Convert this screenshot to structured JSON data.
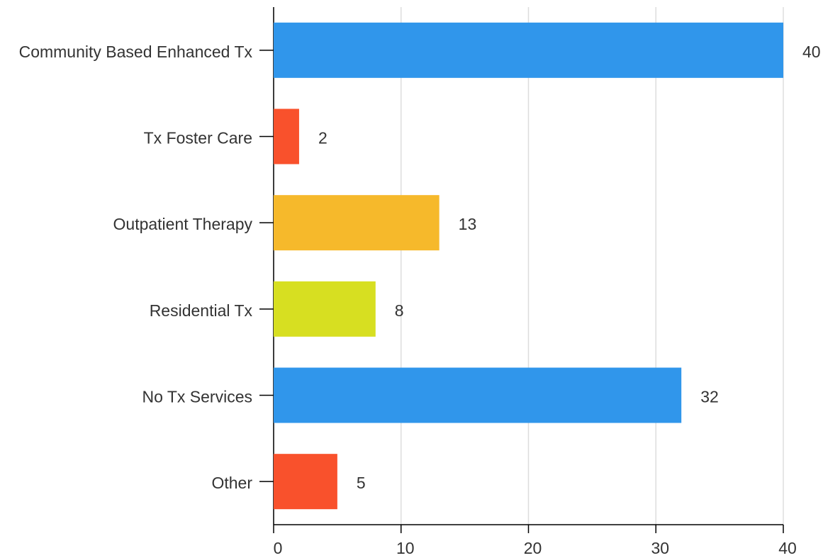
{
  "chart_data": {
    "type": "hbar",
    "categories": [
      "Community Based Enhanced Tx",
      "Tx Foster Care",
      "Outpatient Therapy",
      "Residential Tx",
      "No Tx Services",
      "Other"
    ],
    "values": [
      40,
      2,
      13,
      8,
      32,
      5
    ],
    "colors": [
      "#3096eb",
      "#f9512c",
      "#f6b92b",
      "#d7df21",
      "#3096eb",
      "#f9512c"
    ],
    "xlim": [
      0,
      40
    ],
    "xticks": [
      0,
      10,
      20,
      30,
      40
    ],
    "grid": true
  }
}
